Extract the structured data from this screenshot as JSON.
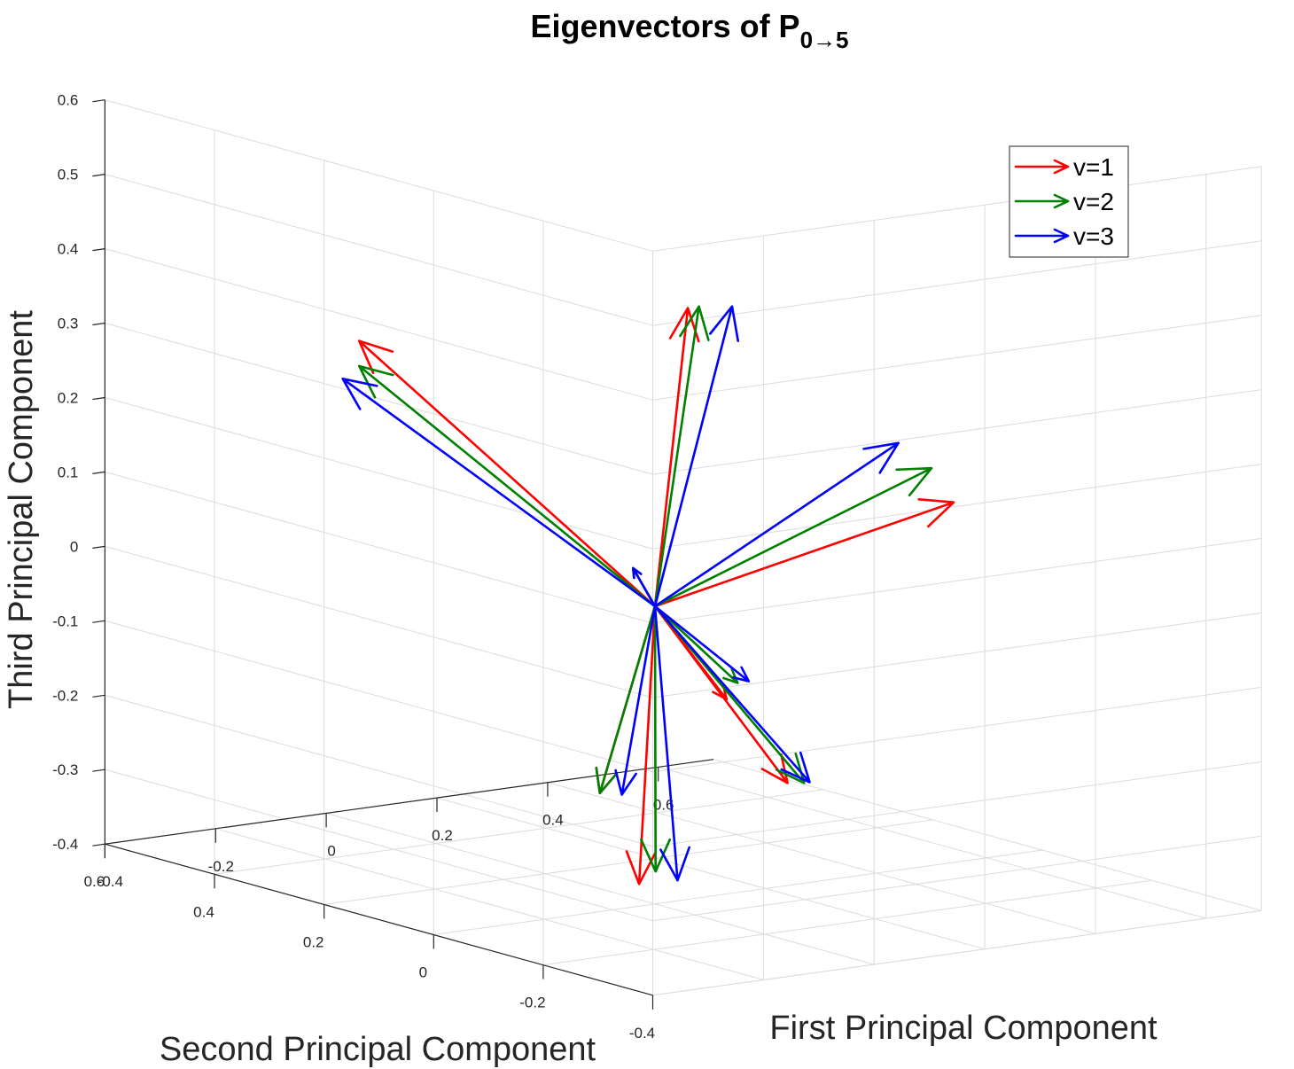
{
  "chart_data": {
    "type": "quiver3d",
    "title": "Eigenvectors of P",
    "title_subscript": "0→5",
    "xlabel": "First Principal Component",
    "ylabel": "Second Principal Component",
    "zlabel": "Third Principal Component",
    "xlim": [
      -0.4,
      0.7
    ],
    "ylim": [
      -0.4,
      0.6
    ],
    "zlim": [
      -0.4,
      0.6
    ],
    "xticks": [
      -0.4,
      -0.2,
      0,
      0.2,
      0.4,
      0.6
    ],
    "xtick_labels": [
      "-0.4",
      "-0.2",
      "0",
      "0.2",
      "0.4",
      "0.6"
    ],
    "yticks": [
      -0.4,
      -0.2,
      0,
      0.2,
      0.4,
      0.6
    ],
    "ytick_labels": [
      "-0.4",
      "-0.2",
      "0",
      "0.2",
      "0.4",
      "0.6"
    ],
    "zticks": [
      -0.4,
      -0.3,
      -0.2,
      -0.1,
      0,
      0.1,
      0.2,
      0.3,
      0.4,
      0.5,
      0.6
    ],
    "ztick_labels": [
      "-0.4",
      "-0.3",
      "-0.2",
      "-0.1",
      "0",
      "0.1",
      "0.2",
      "0.3",
      "0.4",
      "0.5",
      "0.6"
    ],
    "grid": true,
    "legend_position": "top-right",
    "origin": [
      0,
      0,
      0
    ],
    "series": [
      {
        "name": "v=1",
        "color": "#ff0000",
        "vectors": [
          [
            0.52,
            -0.02,
            0.09
          ],
          [
            -0.01,
            0.53,
            0.25
          ],
          [
            0.01,
            -0.05,
            0.41
          ],
          [
            0.1,
            0.13,
            -0.41
          ],
          [
            0.07,
            -0.06,
            -0.12
          ],
          [
            0.2,
            -0.04,
            -0.25
          ],
          [
            -0.07,
            0.03,
            -0.25
          ],
          [
            0.01,
            0.05,
            0.04
          ]
        ]
      },
      {
        "name": "v=2",
        "color": "#008000",
        "vectors": [
          [
            0.48,
            -0.02,
            0.14
          ],
          [
            0.01,
            0.55,
            0.21
          ],
          [
            0.03,
            -0.05,
            0.41
          ],
          [
            0.11,
            0.11,
            -0.39
          ],
          [
            0.09,
            -0.06,
            -0.1
          ],
          [
            0.22,
            -0.05,
            -0.25
          ],
          [
            -0.07,
            0.03,
            -0.25
          ],
          [
            0.01,
            0.05,
            0.04
          ]
        ]
      },
      {
        "name": "v=3",
        "color": "#0000ff",
        "vectors": [
          [
            0.42,
            -0.02,
            0.18
          ],
          [
            0.0,
            0.57,
            0.19
          ],
          [
            0.07,
            -0.07,
            0.41
          ],
          [
            0.13,
            0.09,
            -0.4
          ],
          [
            0.11,
            -0.06,
            -0.1
          ],
          [
            0.23,
            -0.05,
            -0.25
          ],
          [
            -0.05,
            0.01,
            -0.25
          ],
          [
            0.01,
            0.05,
            0.04
          ]
        ]
      }
    ]
  }
}
